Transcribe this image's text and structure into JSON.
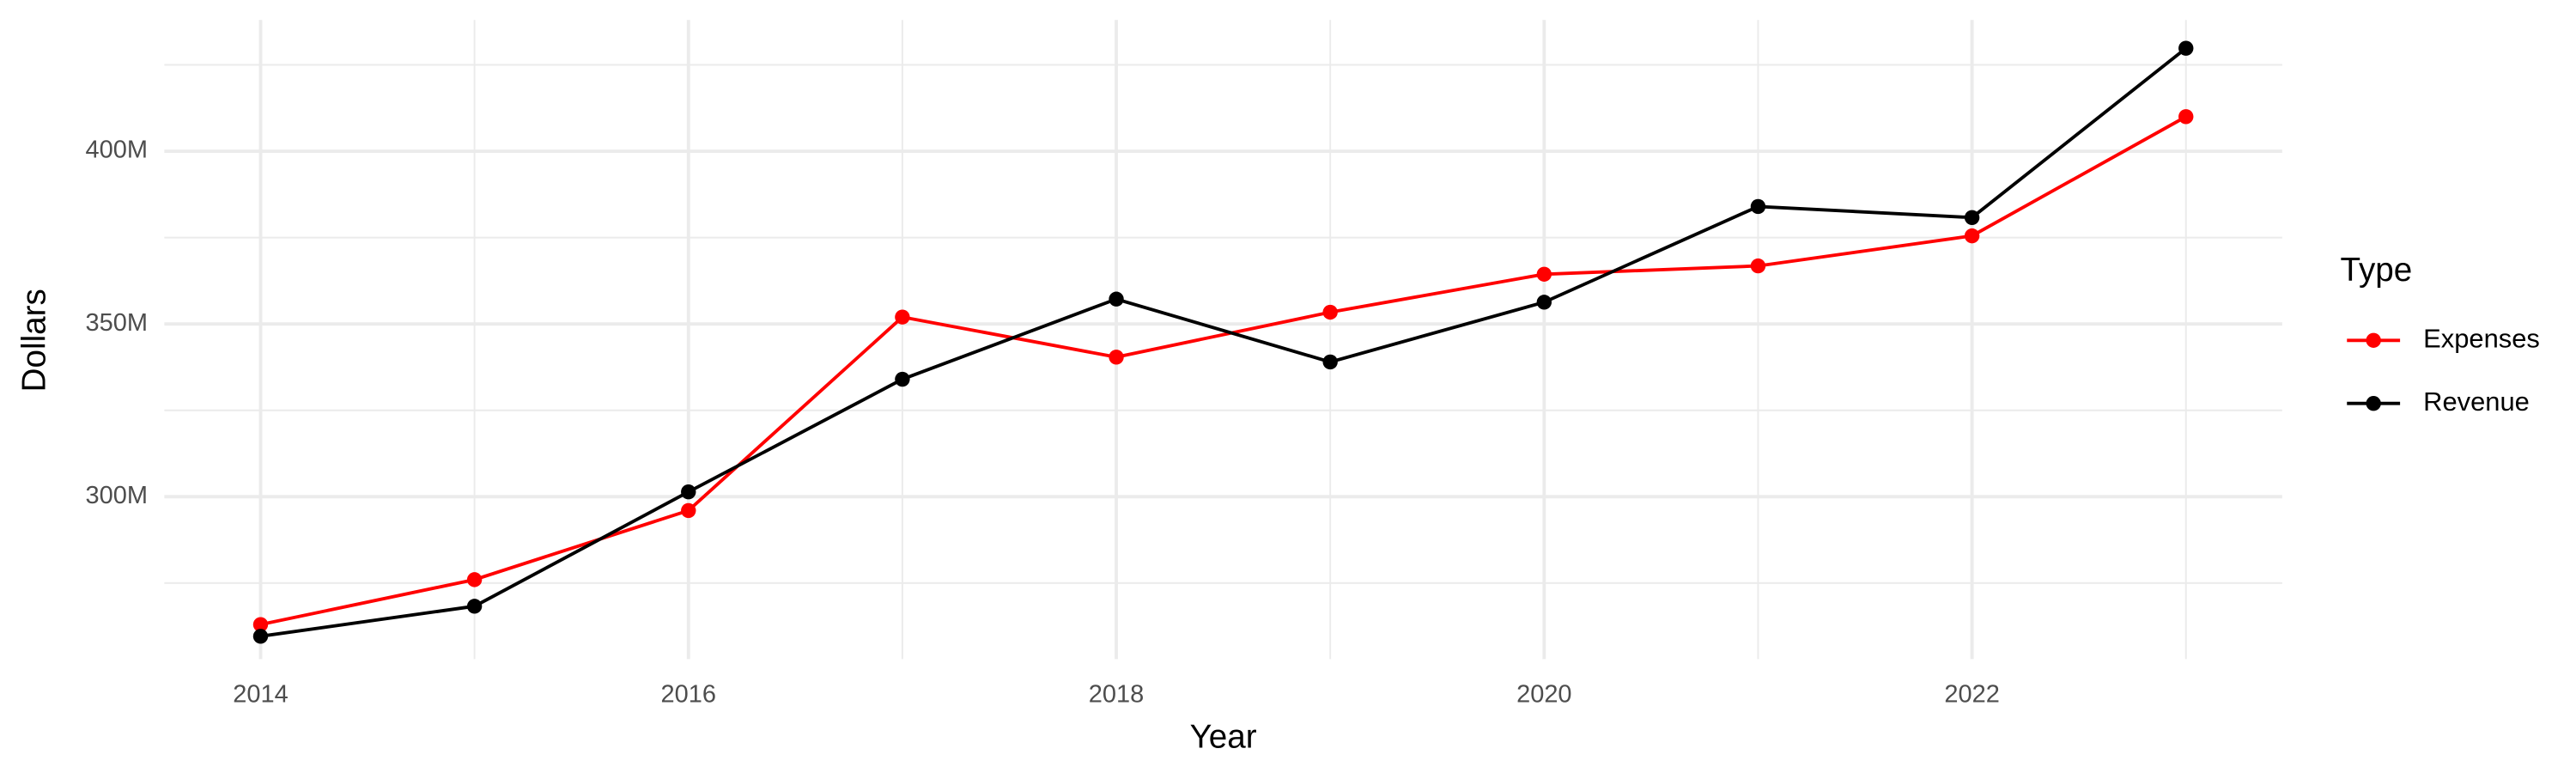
{
  "chart_data": {
    "type": "line",
    "x_label": "Year",
    "y_label": "Dollars",
    "x": [
      2014,
      2015,
      2016,
      2017,
      2018,
      2019,
      2020,
      2021,
      2022,
      2023
    ],
    "series": [
      {
        "name": "Expenses",
        "color": "#ff0000",
        "values": [
          263000000,
          276000000,
          296000000,
          352000000,
          340400000,
          353400000,
          364400000,
          366800000,
          375500000,
          410000000
        ]
      },
      {
        "name": "Revenue",
        "color": "#000000",
        "values": [
          259600000,
          268300000,
          301400000,
          334000000,
          357200000,
          339000000,
          356300000,
          384000000,
          380800000,
          429800000
        ]
      }
    ],
    "xlim": [
      2013.55,
      2023.45
    ],
    "xticks": [
      2014,
      2016,
      2018,
      2020,
      2022
    ],
    "x_minor_ticks": [
      2015,
      2017,
      2019,
      2021,
      2023
    ],
    "ylim": [
      253000000,
      438000000
    ],
    "yticks": [
      {
        "value": 300000000,
        "label": "300M"
      },
      {
        "value": 350000000,
        "label": "350M"
      },
      {
        "value": 400000000,
        "label": "400M"
      }
    ],
    "y_minor_ticks": [
      275000000,
      325000000,
      375000000,
      425000000
    ],
    "grid": true,
    "legend_title": "Type",
    "legend_position": "right"
  }
}
